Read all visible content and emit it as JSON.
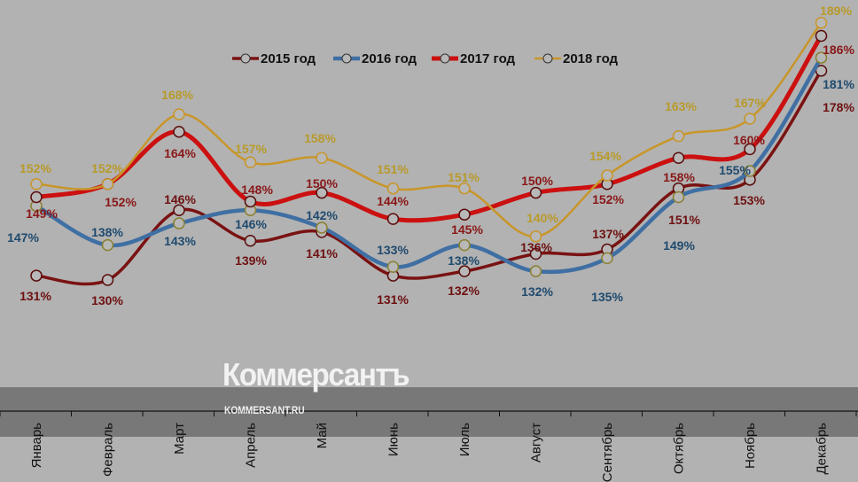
{
  "chart_data": {
    "type": "line",
    "title": "",
    "xlabel": "",
    "ylabel": "",
    "ylim": [
      125,
      192
    ],
    "grid": false,
    "legend_position": "top-center",
    "categories": [
      "Январь",
      "Февраль",
      "Март",
      "Апрель",
      "Май",
      "Июнь",
      "Июль",
      "Август",
      "Сентябрь",
      "Октябрь",
      "Ноябрь",
      "Декабрь"
    ],
    "series": [
      {
        "name": "2015 год",
        "color": "#7a1212",
        "values": [
          131,
          130,
          146,
          139,
          141,
          131,
          132,
          136,
          137,
          151,
          153,
          178
        ]
      },
      {
        "name": "2016 год",
        "color": "#3f6fa3",
        "values": [
          147,
          138,
          143,
          146,
          142,
          133,
          138,
          132,
          135,
          149,
          155,
          181
        ]
      },
      {
        "name": "2017 год",
        "color": "#cc1010",
        "values": [
          149,
          152,
          164,
          148,
          150,
          144,
          145,
          150,
          152,
          158,
          160,
          186
        ]
      },
      {
        "name": "2018 год",
        "color": "#c8962a",
        "values": [
          152,
          152,
          168,
          157,
          158,
          151,
          151,
          140,
          154,
          163,
          167,
          189
        ]
      }
    ],
    "label_colors": [
      "#6e1010",
      "#1f4a6e",
      "#8a1818",
      "#b89a2a"
    ],
    "value_suffix": "%"
  },
  "watermark": {
    "brand": "Коммерсантъ",
    "site": "KOMMERSANT.RU"
  }
}
